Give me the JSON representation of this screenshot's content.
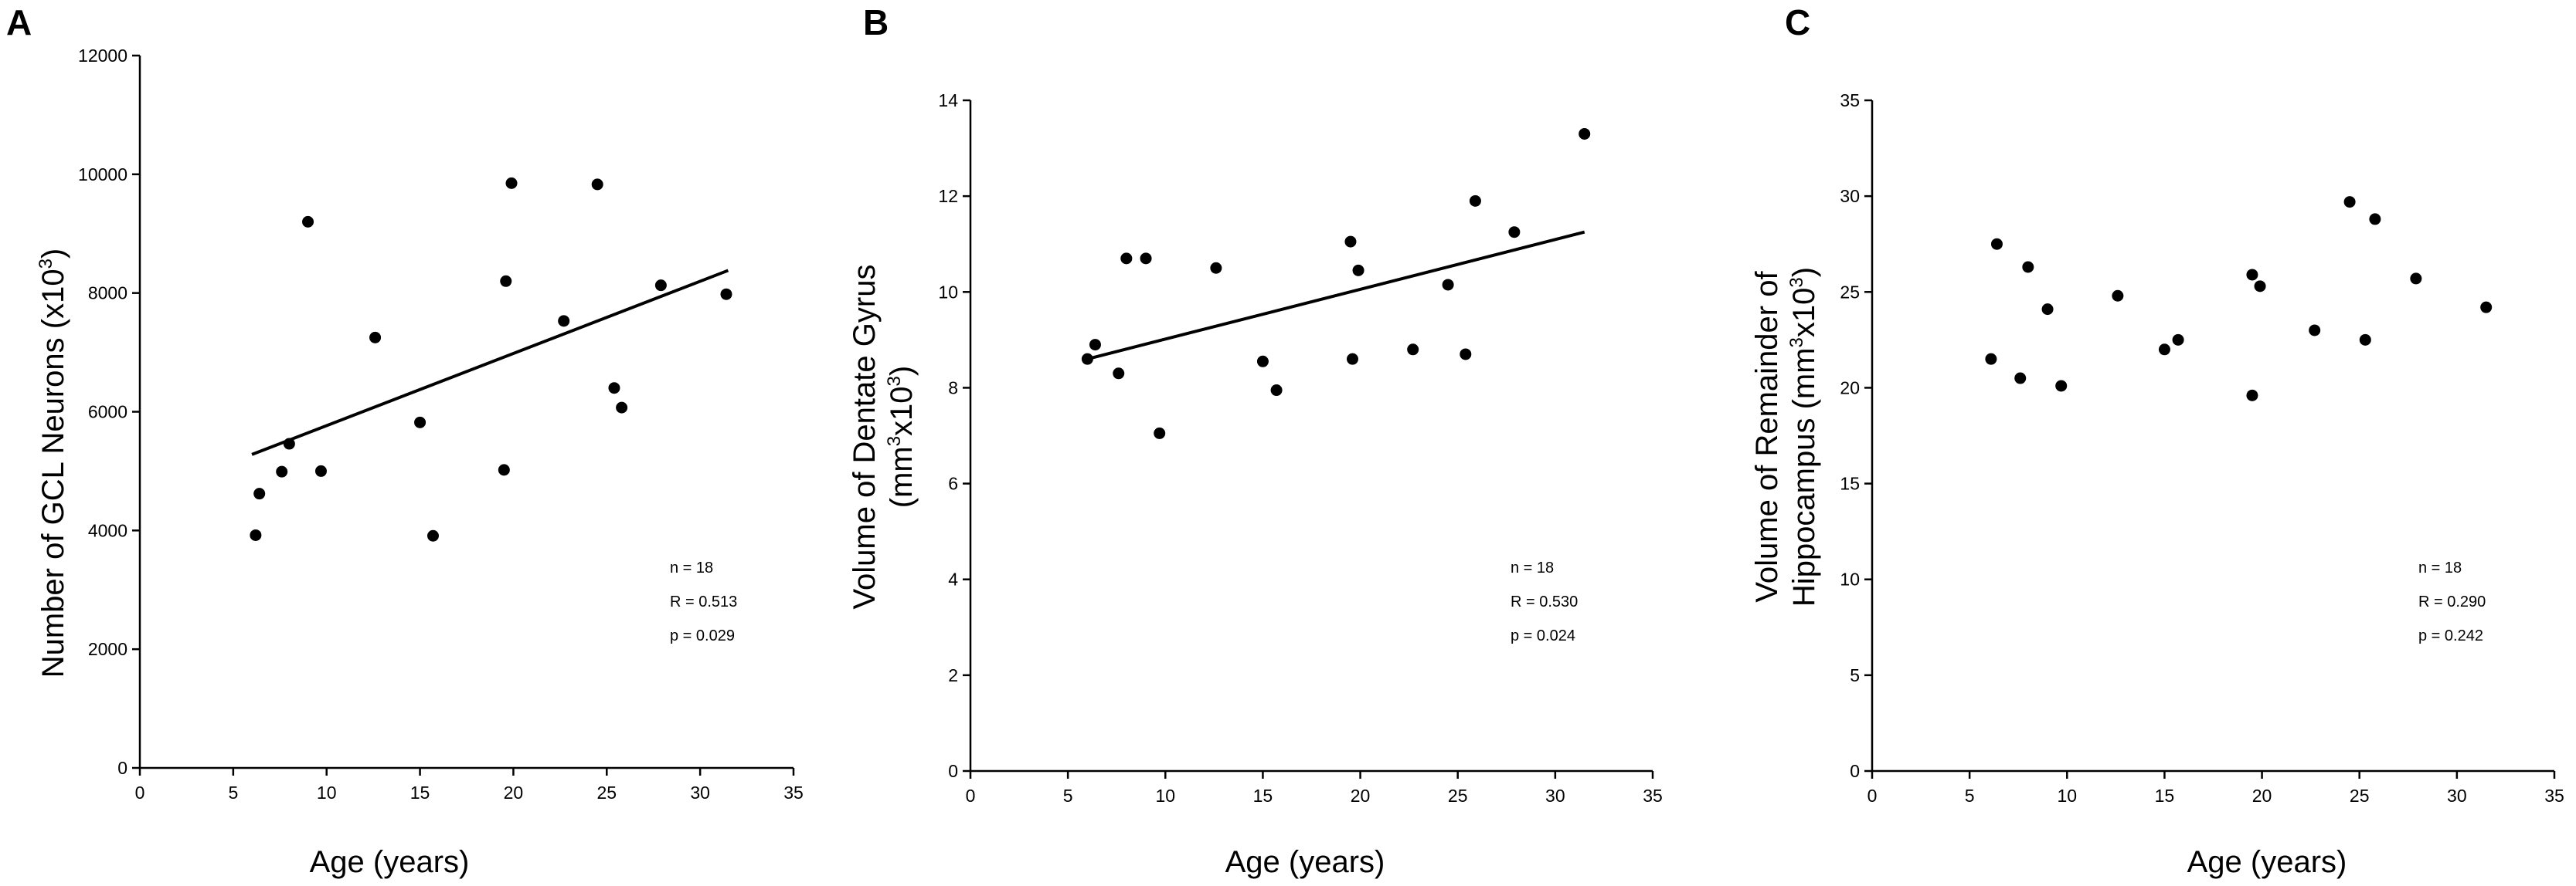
{
  "chart_data": [
    {
      "type": "scatter",
      "panel": "A",
      "ylabel_main": "Number of GCL Neurons (x10",
      "ylabel_sup": "3",
      "ylabel_end": ")",
      "xlabel": "Age (years)",
      "xlim": [
        0,
        35
      ],
      "ylim": [
        0,
        12000
      ],
      "xticks": [
        0,
        5,
        10,
        15,
        20,
        25,
        30,
        35
      ],
      "yticks": [
        0,
        2000,
        4000,
        6000,
        8000,
        10000,
        12000
      ],
      "points": [
        [
          6.2,
          3920
        ],
        [
          6.4,
          4620
        ],
        [
          7.6,
          4990
        ],
        [
          8.0,
          5460
        ],
        [
          9.0,
          9200
        ],
        [
          9.7,
          5000
        ],
        [
          12.6,
          7250
        ],
        [
          15.0,
          5820
        ],
        [
          15.7,
          3910
        ],
        [
          19.5,
          5020
        ],
        [
          19.6,
          8200
        ],
        [
          19.9,
          9850
        ],
        [
          22.7,
          7530
        ],
        [
          24.5,
          9830
        ],
        [
          25.4,
          6400
        ],
        [
          25.8,
          6070
        ],
        [
          27.9,
          8130
        ],
        [
          31.4,
          7980
        ]
      ],
      "fit": [
        [
          6.0,
          5280
        ],
        [
          31.5,
          8380
        ]
      ],
      "stats": {
        "n": "n = 18",
        "r": "R = 0.513",
        "p": "p = 0.029"
      }
    },
    {
      "type": "scatter",
      "panel": "B",
      "ylabel_line1": "Volume of Dentate Gyrus",
      "ylabel_main": "(mm",
      "ylabel_sup": "3",
      "ylabel_mid": "x10",
      "ylabel_sup2": "3",
      "ylabel_end": ")",
      "xlabel": "Age (years)",
      "xlim": [
        0,
        35
      ],
      "ylim": [
        0,
        14
      ],
      "xticks": [
        0,
        5,
        10,
        15,
        20,
        25,
        30,
        35
      ],
      "yticks": [
        0,
        2,
        4,
        6,
        8,
        10,
        12,
        14
      ],
      "points": [
        [
          6.0,
          8.6
        ],
        [
          6.4,
          8.9
        ],
        [
          7.6,
          8.3
        ],
        [
          8.0,
          10.7
        ],
        [
          9.0,
          10.7
        ],
        [
          9.7,
          7.05
        ],
        [
          12.6,
          10.5
        ],
        [
          15.0,
          8.55
        ],
        [
          15.7,
          7.95
        ],
        [
          19.5,
          11.05
        ],
        [
          19.6,
          8.6
        ],
        [
          19.9,
          10.45
        ],
        [
          22.7,
          8.8
        ],
        [
          24.5,
          10.15
        ],
        [
          25.4,
          8.7
        ],
        [
          25.9,
          11.9
        ],
        [
          27.9,
          11.25
        ],
        [
          31.5,
          13.3
        ]
      ],
      "fit": [
        [
          6.0,
          8.6
        ],
        [
          31.5,
          11.25
        ]
      ],
      "stats": {
        "n": "n = 18",
        "r": "R = 0.530",
        "p": "p = 0.024"
      }
    },
    {
      "type": "scatter",
      "panel": "C",
      "ylabel_line1": "Volume of Remainder of",
      "ylabel_main": "Hippocampus (mm",
      "ylabel_sup": "3",
      "ylabel_mid": "x10",
      "ylabel_sup2": "3",
      "ylabel_end": ")",
      "xlabel": "Age (years)",
      "xlim": [
        0,
        35
      ],
      "ylim": [
        0,
        35
      ],
      "xticks": [
        0,
        5,
        10,
        15,
        20,
        25,
        30,
        35
      ],
      "yticks": [
        0,
        5,
        10,
        15,
        20,
        25,
        30,
        35
      ],
      "points": [
        [
          6.1,
          21.5
        ],
        [
          6.4,
          27.5
        ],
        [
          7.6,
          20.5
        ],
        [
          8.0,
          26.3
        ],
        [
          9.0,
          24.1
        ],
        [
          9.7,
          20.1
        ],
        [
          12.6,
          24.8
        ],
        [
          15.0,
          22.0
        ],
        [
          15.7,
          22.5
        ],
        [
          19.5,
          19.6
        ],
        [
          19.5,
          25.9
        ],
        [
          19.9,
          25.3
        ],
        [
          22.7,
          23.0
        ],
        [
          24.5,
          29.7
        ],
        [
          25.3,
          22.5
        ],
        [
          25.8,
          28.8
        ],
        [
          27.9,
          25.7
        ],
        [
          31.5,
          24.2
        ]
      ],
      "fit": null,
      "stats": {
        "n": "n = 18",
        "r": "R = 0.290",
        "p": "p = 0.242"
      }
    }
  ]
}
